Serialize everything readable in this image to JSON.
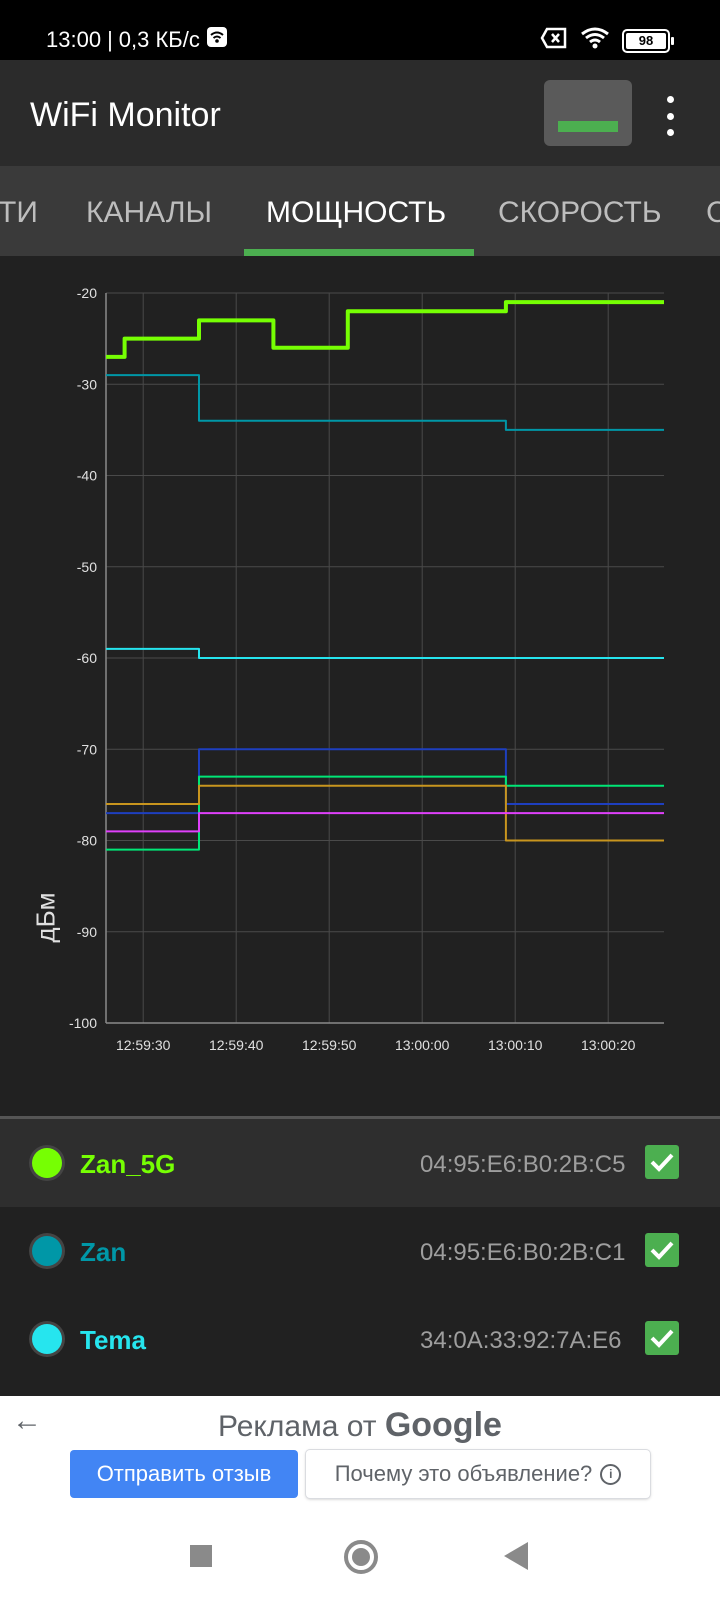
{
  "status_bar": {
    "time": "13:00",
    "separator": "|",
    "net_speed": "0,3 КБ/с",
    "battery": "98"
  },
  "app_bar": {
    "title": "WiFi Monitor"
  },
  "tabs": [
    {
      "label": "ТИ"
    },
    {
      "label": "КАНАЛЫ"
    },
    {
      "label": "МОЩНОСТЬ",
      "active": true
    },
    {
      "label": "СКОРОСТЬ"
    },
    {
      "label": "С"
    }
  ],
  "chart_data": {
    "type": "line",
    "ylabel": "дБм",
    "ylim": [
      -100,
      -20
    ],
    "yticks": [
      "-20",
      "-30",
      "-40",
      "-50",
      "-60",
      "-70",
      "-80",
      "-90",
      "-100"
    ],
    "xlim": [
      "12:59:26",
      "13:00:26"
    ],
    "xticks": [
      "12:59:30",
      "12:59:40",
      "12:59:50",
      "13:00:00",
      "13:00:10",
      "13:00:20"
    ],
    "grid": true,
    "series": [
      {
        "name": "Zan_5G",
        "color": "#76ff03",
        "width": 4,
        "points": [
          [
            "12:59:26",
            -27
          ],
          [
            "12:59:28",
            -27
          ],
          [
            "12:59:28",
            -25
          ],
          [
            "12:59:36",
            -25
          ],
          [
            "12:59:36",
            -23
          ],
          [
            "12:59:44",
            -23
          ],
          [
            "12:59:44",
            -26
          ],
          [
            "12:59:52",
            -26
          ],
          [
            "12:59:52",
            -22
          ],
          [
            "13:00:09",
            -22
          ],
          [
            "13:00:09",
            -21
          ],
          [
            "13:00:26",
            -21
          ]
        ]
      },
      {
        "name": "Zan",
        "color": "#0097a7",
        "width": 2,
        "points": [
          [
            "12:59:26",
            -29
          ],
          [
            "12:59:36",
            -29
          ],
          [
            "12:59:36",
            -34
          ],
          [
            "13:00:09",
            -34
          ],
          [
            "13:00:09",
            -35
          ],
          [
            "13:00:26",
            -35
          ]
        ]
      },
      {
        "name": "Tema",
        "color": "#26e5ee",
        "width": 2,
        "points": [
          [
            "12:59:26",
            -59
          ],
          [
            "12:59:36",
            -59
          ],
          [
            "12:59:36",
            -60
          ],
          [
            "13:00:26",
            -60
          ]
        ]
      },
      {
        "color": "#1e3fbf",
        "width": 2,
        "points": [
          [
            "12:59:26",
            -77
          ],
          [
            "12:59:36",
            -77
          ],
          [
            "12:59:36",
            -70
          ],
          [
            "13:00:09",
            -70
          ],
          [
            "13:00:09",
            -76
          ],
          [
            "13:00:26",
            -76
          ]
        ]
      },
      {
        "color": "#00e676",
        "width": 2,
        "points": [
          [
            "12:59:26",
            -81
          ],
          [
            "12:59:36",
            -81
          ],
          [
            "12:59:36",
            -73
          ],
          [
            "13:00:09",
            -73
          ],
          [
            "13:00:09",
            -74
          ],
          [
            "13:00:26",
            -74
          ]
        ]
      },
      {
        "color": "#c8951e",
        "width": 2,
        "points": [
          [
            "12:59:26",
            -76
          ],
          [
            "12:59:36",
            -76
          ],
          [
            "12:59:36",
            -74
          ],
          [
            "13:00:09",
            -74
          ],
          [
            "13:00:09",
            -80
          ],
          [
            "13:00:26",
            -80
          ]
        ]
      },
      {
        "color": "#e040fb",
        "width": 2,
        "points": [
          [
            "12:59:26",
            -79
          ],
          [
            "12:59:36",
            -79
          ],
          [
            "12:59:36",
            -77
          ],
          [
            "13:00:26",
            -77
          ]
        ]
      }
    ]
  },
  "networks": [
    {
      "ssid": "Zan_5G",
      "mac": "04:95:E6:B0:2B:C5",
      "color": "#76ff03",
      "checked": true,
      "selected": true
    },
    {
      "ssid": "Zan",
      "mac": "04:95:E6:B0:2B:C1",
      "color": "#0097a7",
      "checked": true,
      "selected": false
    },
    {
      "ssid": "Tema",
      "mac": "34:0A:33:92:7A:E6",
      "color": "#26e5ee",
      "checked": true,
      "selected": false
    }
  ],
  "ad": {
    "heading_prefix": "Реклама от",
    "heading_brand": "Google",
    "feedback_button": "Отправить отзыв",
    "why_button": "Почему это объявление?",
    "info_glyph": "i"
  }
}
